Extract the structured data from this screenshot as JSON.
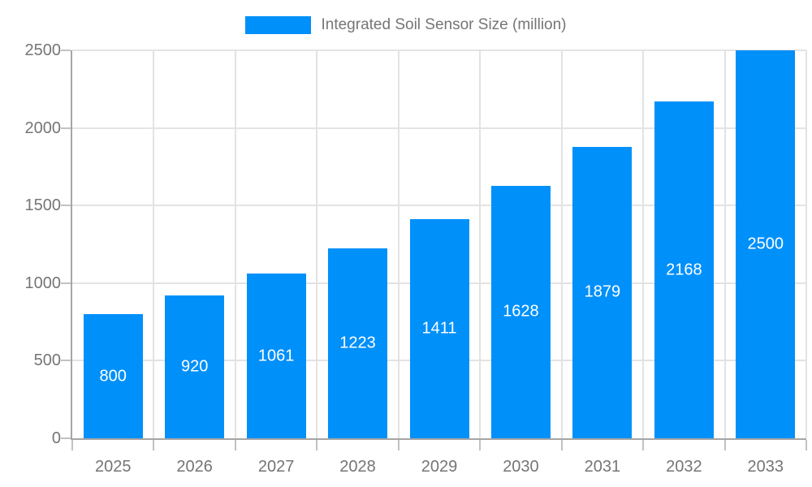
{
  "chart_data": {
    "type": "bar",
    "title": "",
    "legend": "Integrated Soil Sensor Size (million)",
    "categories": [
      "2025",
      "2026",
      "2027",
      "2028",
      "2029",
      "2030",
      "2031",
      "2032",
      "2033"
    ],
    "values": [
      800,
      920,
      1061,
      1223,
      1411,
      1628,
      1879,
      2168,
      2500
    ],
    "xlabel": "",
    "ylabel": "",
    "ylim": [
      0,
      2500
    ],
    "yticks": [
      0,
      500,
      1000,
      1500,
      2000,
      2500
    ],
    "grid": true,
    "legend_position": "top-center",
    "colors": {
      "bar": "#0090fa",
      "value_label": "#ffffff",
      "axis_text": "#757575",
      "grid_line": "#e3e3e3",
      "tick_line": "#c2c2c2",
      "axis_line": "#a6a6a6",
      "background": "#ffffff"
    }
  }
}
